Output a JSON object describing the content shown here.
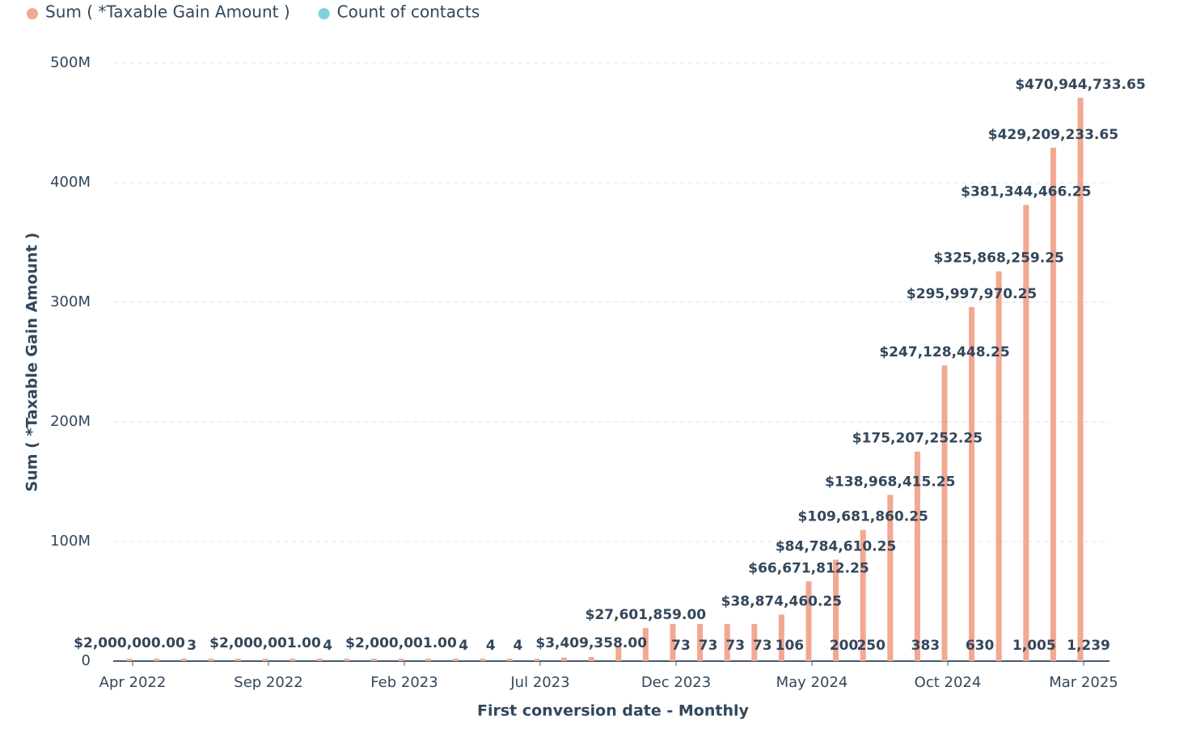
{
  "chart_data": {
    "type": "bar",
    "y_label": "Sum ( *Taxable Gain Amount )",
    "x_label": "First conversion date - Monthly",
    "categories": [
      "Apr 2022",
      null,
      null,
      null,
      null,
      "Sep 2022",
      null,
      null,
      null,
      null,
      "Feb 2023",
      null,
      null,
      null,
      null,
      "Jul 2023",
      null,
      null,
      null,
      null,
      "Dec 2023",
      null,
      null,
      null,
      null,
      "May 2024",
      null,
      null,
      null,
      null,
      "Oct 2024",
      null,
      null,
      null,
      null,
      "Mar 2025"
    ],
    "series": [
      {
        "name": "Sum ( *Taxable Gain Amount )",
        "color": "#f2a891",
        "values": [
          2000000,
          2000000,
          2000000,
          2000000,
          2000000,
          2000001,
          2000001,
          2000001,
          2000001,
          2000001,
          2000001,
          2000001,
          2000001,
          2000001,
          2000001,
          2000001,
          3000000,
          3409358,
          12000000,
          27601859,
          31000000,
          31000000,
          31000000,
          31000000,
          38874460.25,
          66671812.25,
          84784610.25,
          109681860.25,
          138968415.25,
          175207252.25,
          247128448.25,
          295997970.25,
          325868259.25,
          381344466.25,
          429209233.65,
          470944733.65
        ],
        "value_labels": [
          "$2,000,000.00",
          null,
          null,
          null,
          null,
          "$2,000,001.00",
          null,
          null,
          null,
          null,
          "$2,000,001.00",
          null,
          null,
          null,
          null,
          null,
          null,
          "$3,409,358.00",
          null,
          "$27,601,859.00",
          null,
          null,
          null,
          null,
          "$38,874,460.25",
          "$66,671,812.25",
          "$84,784,610.25",
          "$109,681,860.25",
          "$138,968,415.25",
          "$175,207,252.25",
          "$247,128,448.25",
          "$295,997,970.25",
          "$325,868,259.25",
          "$381,344,466.25",
          "$429,209,233.65",
          "$470,944,733.65"
        ]
      },
      {
        "name": "Count of contacts",
        "color": "#7fd1de",
        "values": [
          1,
          1,
          3,
          1,
          1,
          1,
          1,
          4,
          1,
          1,
          1,
          1,
          4,
          4,
          4,
          2,
          2,
          3,
          10,
          20,
          73,
          73,
          73,
          73,
          106,
          150,
          200,
          250,
          300,
          383,
          500,
          630,
          800,
          1005,
          1100,
          1239
        ],
        "value_labels": [
          null,
          null,
          "3",
          null,
          null,
          null,
          null,
          "4",
          null,
          null,
          null,
          null,
          "4",
          "4",
          "4",
          null,
          null,
          null,
          null,
          null,
          "73",
          "73",
          "73",
          "73",
          "106",
          null,
          "200",
          "250",
          null,
          "383",
          null,
          "630",
          null,
          "1,005",
          null,
          "1,239"
        ]
      }
    ],
    "ylim": [
      0,
      500000000
    ],
    "yticks": [
      0,
      {
        "value": 100000000,
        "label": "100M"
      },
      {
        "value": 200000000,
        "label": "200M"
      },
      {
        "value": 300000000,
        "label": "300M"
      },
      {
        "value": 400000000,
        "label": "400M"
      },
      {
        "value": 500000000,
        "label": "500M"
      }
    ],
    "grid": true,
    "legend": "top-left"
  }
}
